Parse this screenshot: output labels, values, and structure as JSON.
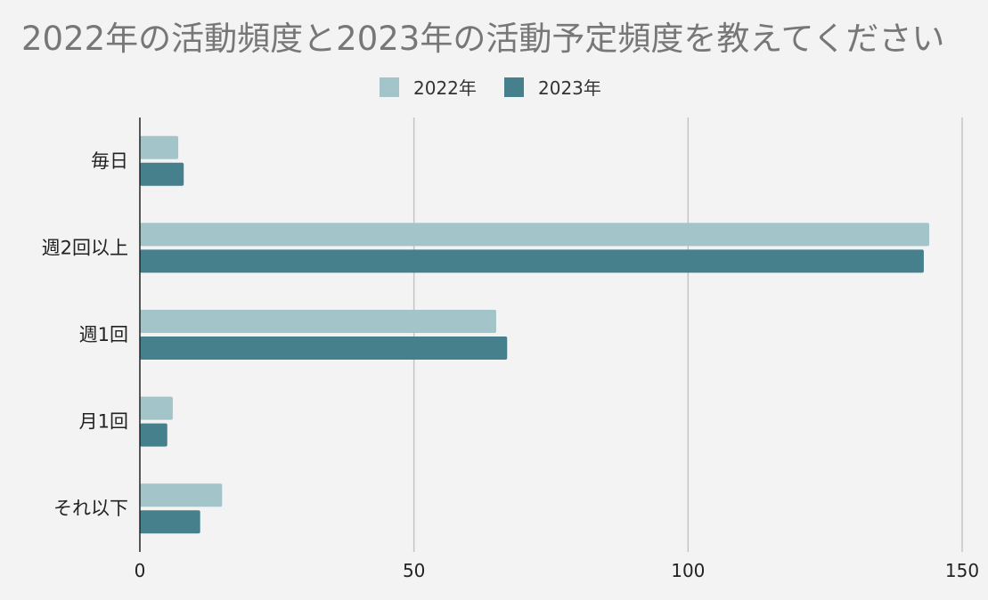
{
  "chart_data": {
    "type": "bar",
    "orientation": "horizontal",
    "title": "2022年の活動頻度と2023年の活動予定頻度を教えてください",
    "categories": [
      "毎日",
      "週2回以上",
      "週1回",
      "月1回",
      "それ以下"
    ],
    "series": [
      {
        "name": "2022年",
        "color": "#a3c4c8",
        "values": [
          7,
          144,
          65,
          6,
          15
        ]
      },
      {
        "name": "2023年",
        "color": "#46808d",
        "values": [
          8,
          143,
          67,
          5,
          11
        ]
      }
    ],
    "xlim": [
      0,
      150
    ],
    "xticks": [
      "0",
      "50",
      "100",
      "150"
    ],
    "grid": true,
    "legend_position": "top-center",
    "xlabel": "",
    "ylabel": ""
  }
}
